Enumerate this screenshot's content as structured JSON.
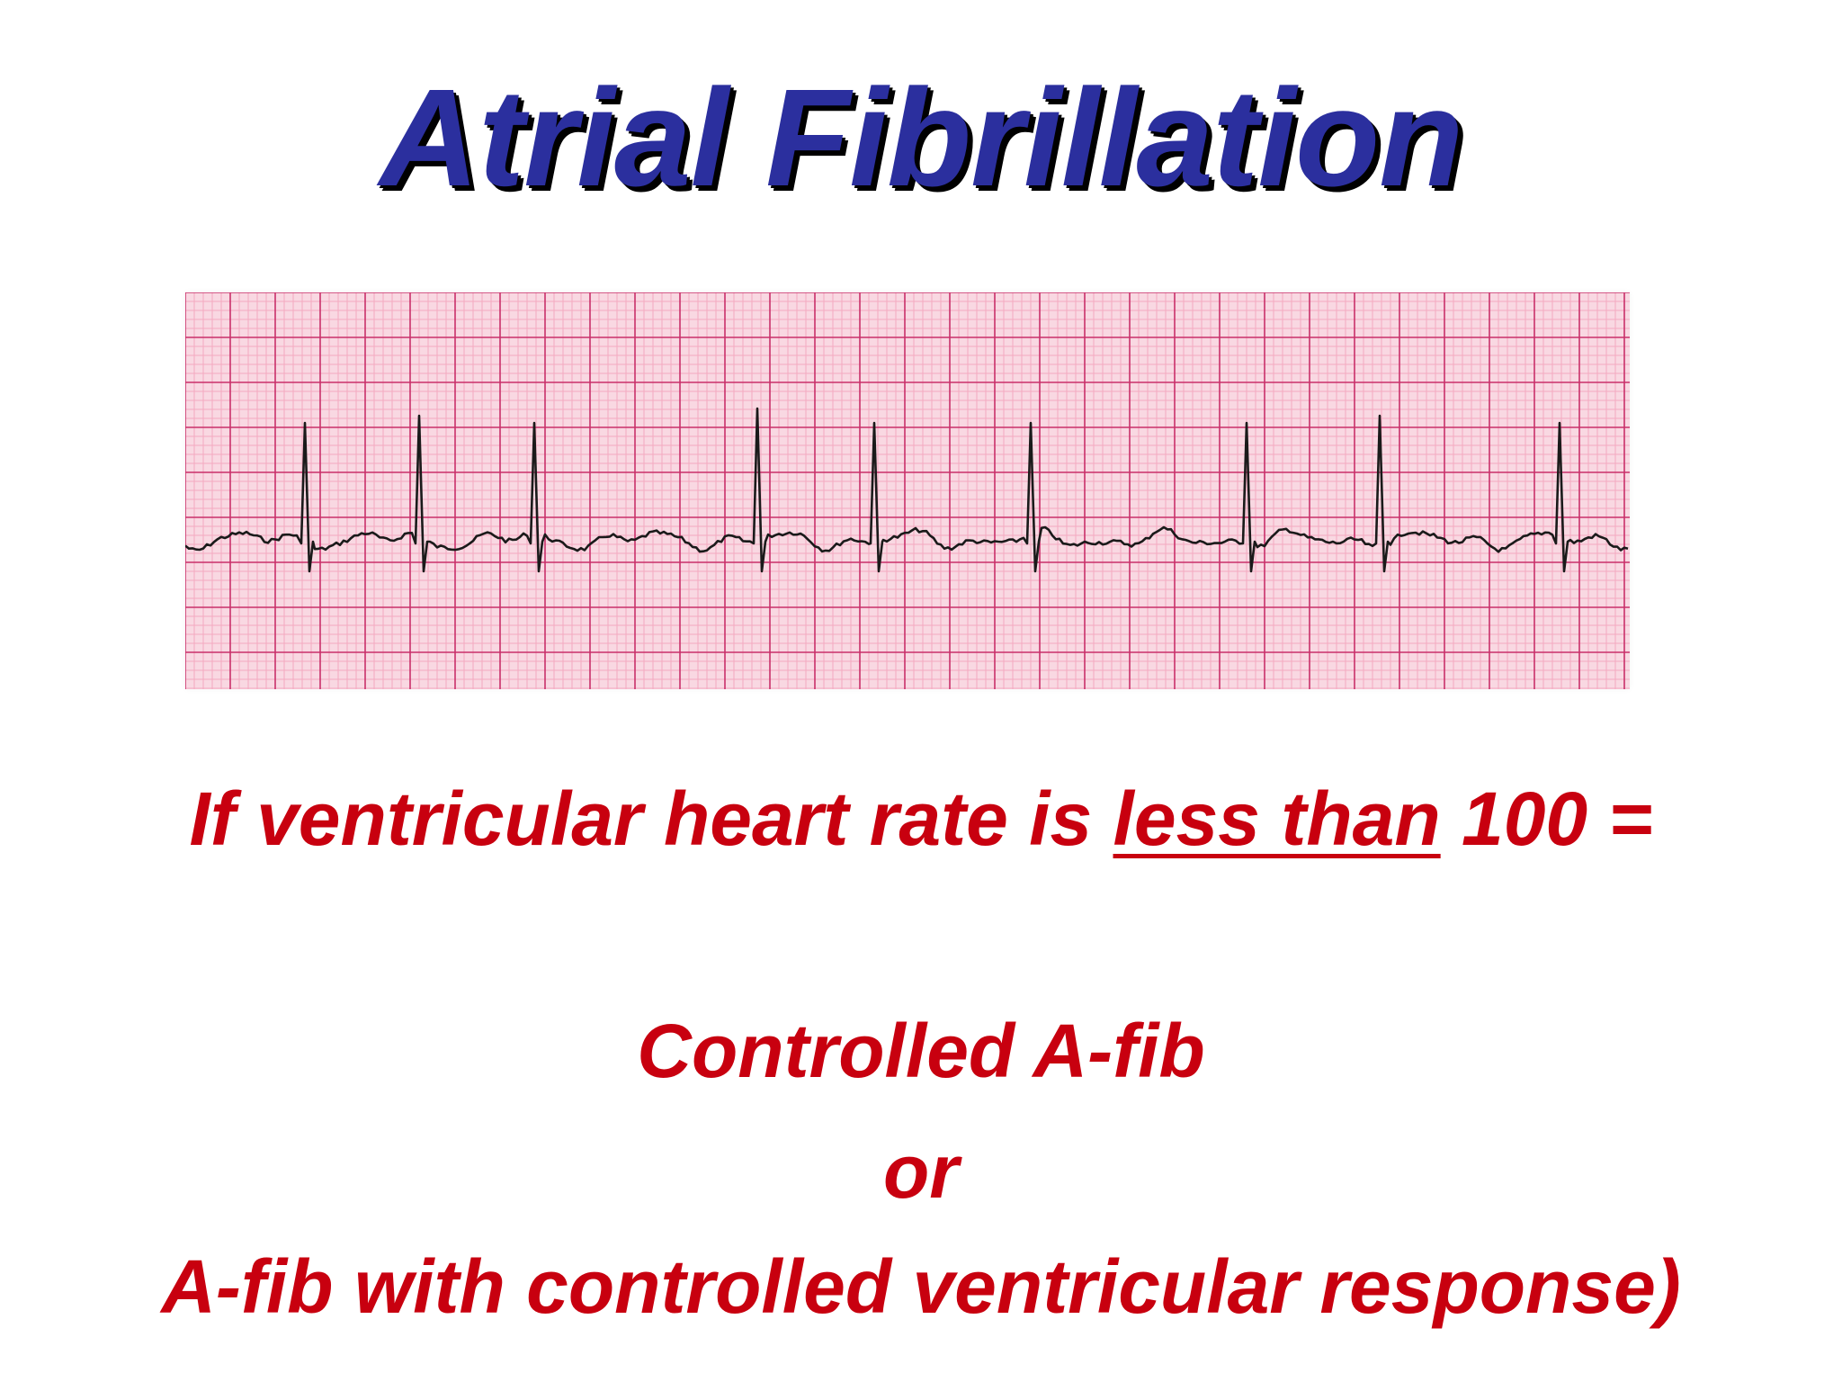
{
  "title": "Atrial Fibrillation",
  "ecg": {
    "grid_color_minor": "#f4a9c0",
    "grid_color_major": "#c9306a",
    "paper_color": "#f9d8e2",
    "trace_color": "#1a1a1a"
  },
  "condition": {
    "prefix": "If ventricular heart rate is ",
    "emphasis": "less than",
    "suffix": " 100 ="
  },
  "result_1": "Controlled A-fib",
  "connector": "or",
  "result_2": "A-fib with controlled ventricular response)",
  "colors": {
    "title_blue": "#2b2f9e",
    "body_red": "#c8000f"
  }
}
